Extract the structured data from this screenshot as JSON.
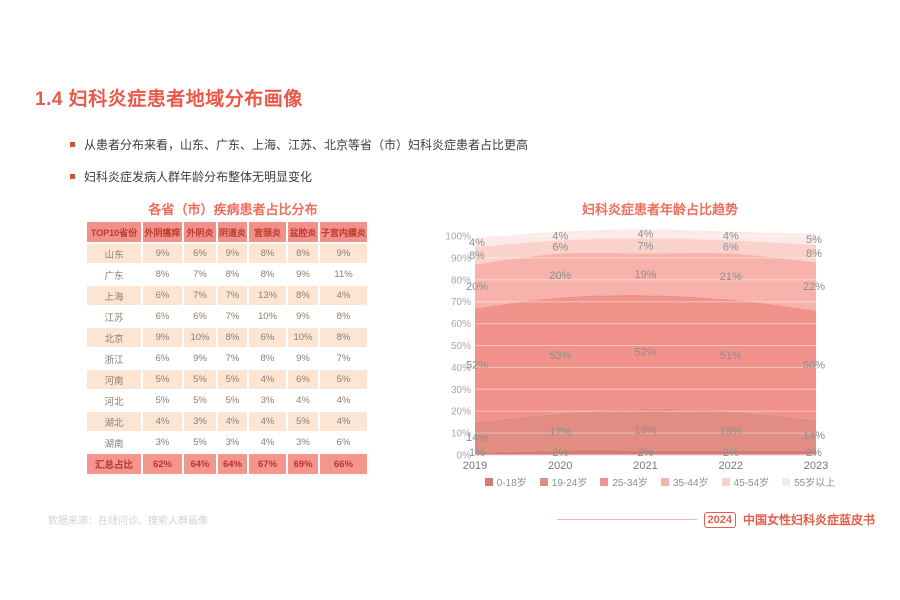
{
  "page": {
    "title": "1.4 妇科炎症患者地域分布画像",
    "bullets": [
      "从患者分布来看，山东、广东、上海、江苏、北京等省（市）妇科炎症患者占比更高",
      "妇科炎症发病人群年龄分布整体无明显变化"
    ],
    "accent_color": "#e8594a",
    "footer": {
      "source": "数据来源：在线问诊、搜索人群画像",
      "year_badge": "2024",
      "book_title": "中国女性妇科炎症蓝皮书"
    }
  },
  "table": {
    "title": "各省（市）疾病患者占比分布",
    "headers": [
      "TOP10省份",
      "外阴瘙痒",
      "外阴炎",
      "阴道炎",
      "宫颈炎",
      "盆腔炎",
      "子宫内膜炎"
    ],
    "rows": [
      {
        "name": "山东",
        "values": [
          "9%",
          "6%",
          "9%",
          "8%",
          "8%",
          "9%"
        ]
      },
      {
        "name": "广东",
        "values": [
          "8%",
          "7%",
          "8%",
          "8%",
          "9%",
          "11%"
        ]
      },
      {
        "name": "上海",
        "values": [
          "6%",
          "7%",
          "7%",
          "13%",
          "8%",
          "4%"
        ]
      },
      {
        "name": "江苏",
        "values": [
          "6%",
          "6%",
          "7%",
          "10%",
          "9%",
          "8%"
        ]
      },
      {
        "name": "北京",
        "values": [
          "9%",
          "10%",
          "8%",
          "6%",
          "10%",
          "8%"
        ]
      },
      {
        "name": "浙江",
        "values": [
          "6%",
          "9%",
          "7%",
          "8%",
          "9%",
          "7%"
        ]
      },
      {
        "name": "河南",
        "values": [
          "5%",
          "5%",
          "5%",
          "4%",
          "6%",
          "5%"
        ]
      },
      {
        "name": "河北",
        "values": [
          "5%",
          "5%",
          "5%",
          "3%",
          "4%",
          "4%"
        ]
      },
      {
        "name": "湖北",
        "values": [
          "4%",
          "3%",
          "4%",
          "4%",
          "5%",
          "4%"
        ]
      },
      {
        "name": "湖南",
        "values": [
          "3%",
          "5%",
          "3%",
          "4%",
          "3%",
          "6%"
        ]
      }
    ],
    "total_row": {
      "name": "汇总占比",
      "values": [
        "62%",
        "64%",
        "64%",
        "67%",
        "69%",
        "66%"
      ]
    },
    "colors": {
      "header_bg": "#f2918a",
      "header_text": "#bc3a2e",
      "odd_row_bg": "#fce5d2",
      "even_row_bg": "#ffffff",
      "total_bg": "#f2968e",
      "total_text": "#bd3529"
    }
  },
  "chart_data": {
    "type": "area",
    "stacked": true,
    "title": "妇科炎症患者年龄占比趋势",
    "x": [
      "2019",
      "2020",
      "2021",
      "2022",
      "2023"
    ],
    "series": [
      {
        "name": "0-18岁",
        "color": "#d47c73",
        "values": [
          1,
          2,
          2,
          2,
          2
        ]
      },
      {
        "name": "19-24岁",
        "color": "#e28d84",
        "values": [
          14,
          17,
          19,
          18,
          14
        ]
      },
      {
        "name": "25-34岁",
        "color": "#f2938b",
        "values": [
          52,
          53,
          52,
          51,
          50
        ]
      },
      {
        "name": "35-44岁",
        "color": "#f7b3ab",
        "values": [
          20,
          20,
          19,
          21,
          22
        ]
      },
      {
        "name": "45-54岁",
        "color": "#fad2cc",
        "values": [
          8,
          6,
          7,
          6,
          8
        ]
      },
      {
        "name": "55岁以上",
        "color": "#fdeae8",
        "values": [
          4,
          4,
          4,
          4,
          5
        ]
      }
    ],
    "ylim": [
      0,
      100
    ],
    "ytick_step": 10,
    "grid": true,
    "legend_position": "bottom",
    "label_color": "#8e8e8e",
    "axis_label_color": "#a8a8a8",
    "xaxis_label_color": "#787878"
  }
}
